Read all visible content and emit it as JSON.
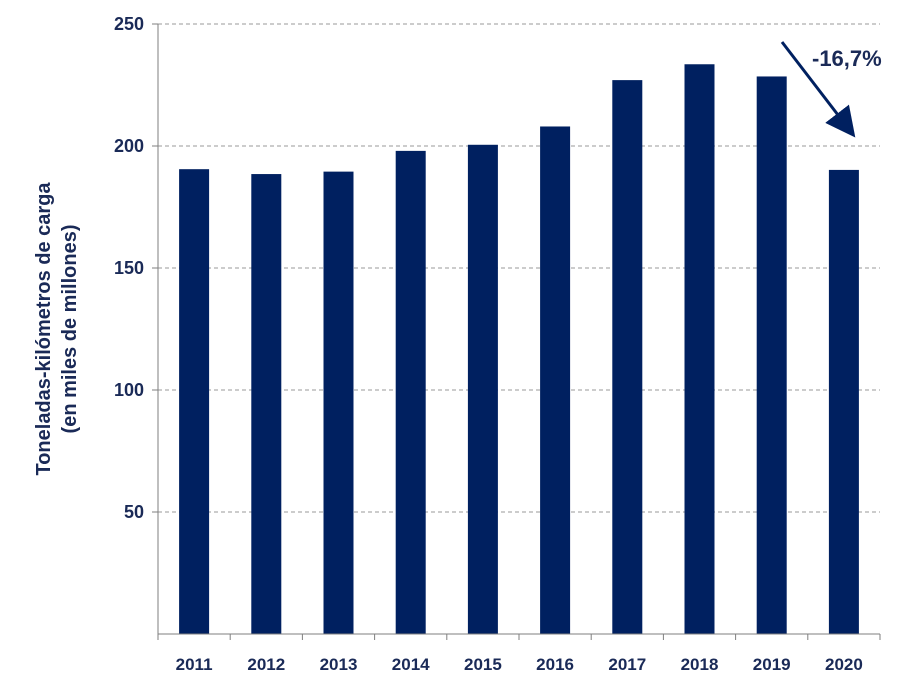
{
  "chart_data": {
    "type": "bar",
    "categories": [
      "2011",
      "2012",
      "2013",
      "2014",
      "2015",
      "2016",
      "2017",
      "2018",
      "2019",
      "2020"
    ],
    "values": [
      190.5,
      188.5,
      189.5,
      198,
      200.5,
      208,
      227,
      233.5,
      228.5,
      190.2
    ],
    "title": "",
    "xlabel": "",
    "ylabel_line1": "Toneladas-kilómetros de carga",
    "ylabel_line2": "(en miles de millones)",
    "ylim": [
      0,
      250
    ],
    "yticks": [
      50,
      100,
      150,
      200,
      250
    ],
    "ytick_labels": [
      "50",
      "100",
      "150",
      "200",
      "250"
    ],
    "grid": "horizontal-dashed",
    "legend": "none",
    "annotation": {
      "text": "-16,7%",
      "points_to": "2020"
    },
    "colors": {
      "bar": "#002060",
      "text": "#1a2a57",
      "grid": "#9a9a9a",
      "axis": "#7f7f7f"
    }
  }
}
